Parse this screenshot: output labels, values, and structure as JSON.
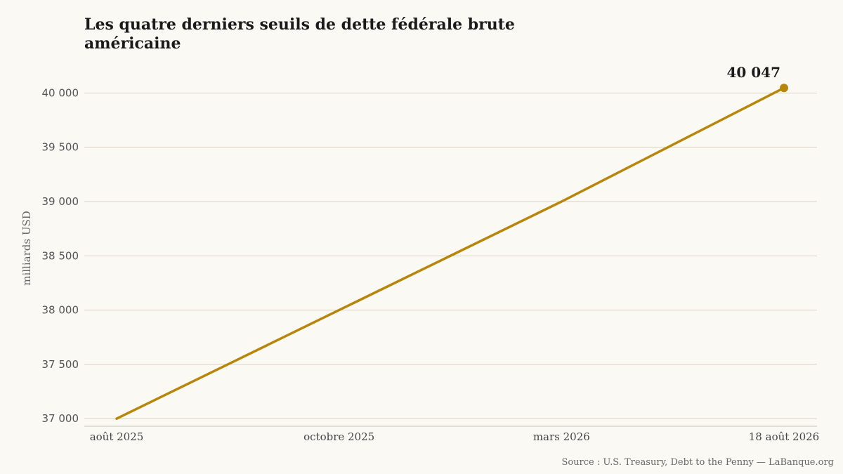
{
  "chart_data": {
    "type": "line",
    "title": "Les quatre derniers seuils de dette fédérale brute américaine",
    "ylabel": "milliards USD",
    "xlabel": "",
    "categories": [
      "août 2025",
      "octobre 2025",
      "mars 2026",
      "18 août 2026"
    ],
    "series": [
      {
        "values": [
          37000,
          38000,
          39000,
          40047
        ]
      }
    ],
    "yticks": [
      37000,
      37500,
      38000,
      38500,
      39000,
      39500,
      40000
    ],
    "ytick_labels": [
      "37 000",
      "37 500",
      "38 000",
      "38 500",
      "39 000",
      "39 500",
      "40 000"
    ],
    "ylim": [
      36930,
      40210
    ],
    "grid": true,
    "annotation": {
      "category": "18 août 2026",
      "value": 40047,
      "text": "40 047"
    },
    "line_color": "#b8860b",
    "source": "Source : U.S. Treasury, Debt to the Penny — LaBanque.org"
  }
}
